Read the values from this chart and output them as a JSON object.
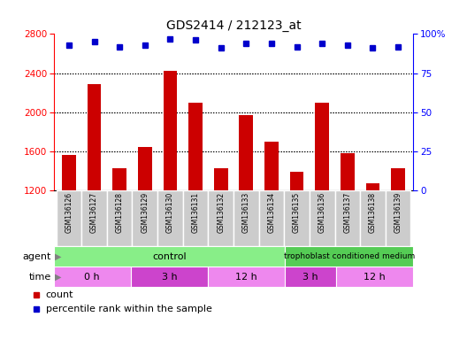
{
  "title": "GDS2414 / 212123_at",
  "samples": [
    "GSM136126",
    "GSM136127",
    "GSM136128",
    "GSM136129",
    "GSM136130",
    "GSM136131",
    "GSM136132",
    "GSM136133",
    "GSM136134",
    "GSM136135",
    "GSM136136",
    "GSM136137",
    "GSM136138",
    "GSM136139"
  ],
  "counts": [
    1565,
    2290,
    1430,
    1640,
    2420,
    2100,
    1430,
    1970,
    1700,
    1390,
    2100,
    1580,
    1270,
    1430
  ],
  "percentile_ranks": [
    93,
    95,
    92,
    93,
    97,
    96,
    91,
    94,
    94,
    92,
    94,
    93,
    91,
    92
  ],
  "ylim_left": [
    1200,
    2800
  ],
  "ylim_right": [
    0,
    100
  ],
  "yticks_left": [
    1200,
    1600,
    2000,
    2400,
    2800
  ],
  "yticks_right": [
    0,
    25,
    50,
    75,
    100
  ],
  "bar_color": "#cc0000",
  "dot_color": "#0000cc",
  "tick_area_bg": "#cccccc",
  "agent_control_color": "#88ee88",
  "agent_trophoblast_color": "#55cc55",
  "time_light_color": "#ee88ee",
  "time_dark_color": "#cc44cc",
  "background_color": "#ffffff",
  "title_fontsize": 10,
  "bar_width": 0.55,
  "dot_size": 5,
  "gridline_color": "#000000"
}
